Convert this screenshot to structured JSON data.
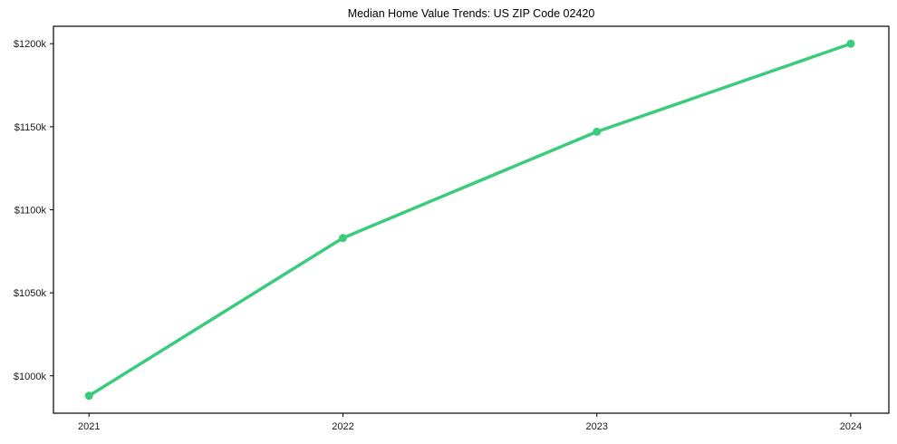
{
  "chart_data": {
    "type": "line",
    "title": "Median Home Value Trends: US ZIP Code 02420",
    "x": [
      2021,
      2022,
      2023,
      2024
    ],
    "values": [
      988,
      1083,
      1147,
      1200
    ],
    "values_note": "y values in thousands of dollars as read from axis",
    "xtick_labels": [
      "2021",
      "2022",
      "2023",
      "2024"
    ],
    "ytick_values": [
      1000,
      1050,
      1100,
      1150,
      1200
    ],
    "ytick_labels": [
      "$1000k",
      "$1050k",
      "$1100k",
      "$1150k",
      "$1200k"
    ],
    "xlim": [
      2020.86,
      2024.15
    ],
    "ylim": [
      977.5,
      1210.5
    ],
    "grid": false,
    "legend": "none",
    "line_color": "#3bcb7c",
    "marker_color": "#3bcb7c",
    "axis_color": "#000000",
    "background_color": "#ffffff"
  }
}
